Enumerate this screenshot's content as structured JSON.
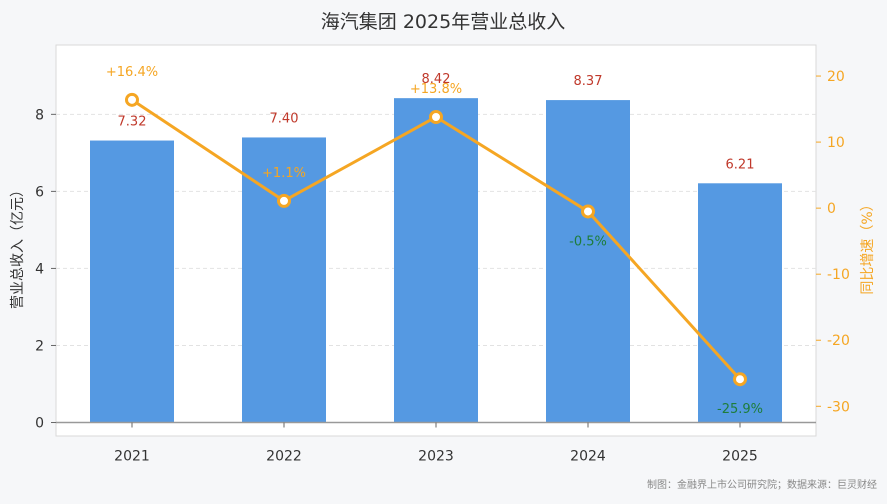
{
  "chart_data": {
    "type": "bar",
    "title": "海汽集团 2025年营业总收入",
    "ylabel": "营业总收入（亿元）",
    "y2label": "同比增速（%）",
    "categories": [
      "2021",
      "2022",
      "2023",
      "2024",
      "2025"
    ],
    "series": [
      {
        "type": "bar",
        "values": [
          7.32,
          7.4,
          8.42,
          8.37,
          6.21
        ],
        "value_labels": [
          "7.32",
          "7.40",
          "8.42",
          "8.37",
          "6.21"
        ]
      },
      {
        "type": "line",
        "values": [
          16.4,
          1.1,
          13.8,
          -0.5,
          -25.9
        ],
        "value_labels": [
          "+16.4%",
          "+1.1%",
          "+13.8%",
          "-0.5%",
          "-25.9%"
        ]
      }
    ],
    "ylim": [
      -0.35,
      9.8
    ],
    "y_ticks": [
      0,
      2,
      4,
      6,
      8
    ],
    "y2lim": [
      -34.5,
      24.7
    ],
    "y2_ticks": [
      20,
      10,
      0,
      -10,
      -20,
      -30
    ],
    "grid": true,
    "colors": {
      "bar": "#5599e2",
      "line": "#f5a623",
      "bar_label": "#c0392b",
      "positive_growth": "#f5a623",
      "negative_growth": "#1e7d3a"
    },
    "source": "制图：金融界上市公司研究院；数据来源：巨灵财经"
  }
}
